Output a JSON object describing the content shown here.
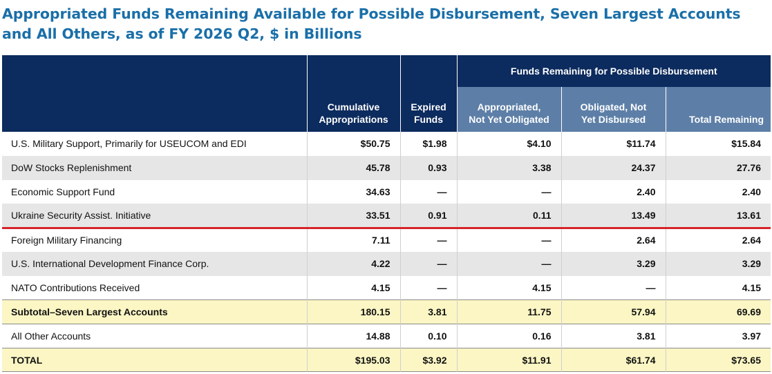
{
  "title": {
    "line1": "Appropriated Funds Remaining Available for Possible Disbursement, Seven Largest Accounts",
    "line2": "and All Others, as of FY 2026 Q2, $ in Billions"
  },
  "table": {
    "group_header": "Funds Remaining for Possible Disbursement",
    "columns": {
      "cumulative_1": "Cumulative",
      "cumulative_2": "Appropriations",
      "expired_1": "Expired",
      "expired_2": "Funds",
      "appropriated_1": "Appropriated,",
      "appropriated_2": "Not Yet Obligated",
      "obligated_1": "Obligated, Not",
      "obligated_2": "Yet Disbursed",
      "total": "Total Remaining"
    },
    "rows": [
      {
        "label": "U.S. Military Support, Primarily for USEUCOM and EDI",
        "cumulative": "$50.75",
        "expired": "$1.98",
        "appropriated": "$4.10",
        "obligated": "$11.74",
        "total": "$15.84"
      },
      {
        "label": "DoW Stocks Replenishment",
        "cumulative": "45.78",
        "expired": "0.93",
        "appropriated": "3.38",
        "obligated": "24.37",
        "total": "27.76"
      },
      {
        "label": "Economic Support Fund",
        "cumulative": "34.63",
        "expired": "—",
        "appropriated": "—",
        "obligated": "2.40",
        "total": "2.40"
      },
      {
        "label": "Ukraine Security Assist. Initiative",
        "cumulative": "33.51",
        "expired": "0.91",
        "appropriated": "0.11",
        "obligated": "13.49",
        "total": "13.61"
      },
      {
        "label": "Foreign Military Financing",
        "cumulative": "7.11",
        "expired": "—",
        "appropriated": "—",
        "obligated": "2.64",
        "total": "2.64"
      },
      {
        "label": "U.S. International Development Finance Corp.",
        "cumulative": "4.22",
        "expired": "—",
        "appropriated": "—",
        "obligated": "3.29",
        "total": "3.29"
      },
      {
        "label": "NATO Contributions Received",
        "cumulative": "4.15",
        "expired": "—",
        "appropriated": "4.15",
        "obligated": "—",
        "total": "4.15"
      },
      {
        "label": "Subtotal–Seven Largest Accounts",
        "cumulative": "180.15",
        "expired": "3.81",
        "appropriated": "11.75",
        "obligated": "57.94",
        "total": "69.69"
      },
      {
        "label": "All Other Accounts",
        "cumulative": "14.88",
        "expired": "0.10",
        "appropriated": "0.16",
        "obligated": "3.81",
        "total": "3.97"
      },
      {
        "label": "TOTAL",
        "cumulative": "$195.03",
        "expired": "$3.92",
        "appropriated": "$11.91",
        "obligated": "$61.74",
        "total": "$73.65"
      }
    ]
  },
  "colors": {
    "title": "#1a6fa8",
    "header_navy": "#0c2b5e",
    "header_light": "#5d7fa7",
    "row_gray": "#e6e6e6",
    "row_yellow": "#fbf6c4",
    "divider_red": "#d7232b"
  }
}
